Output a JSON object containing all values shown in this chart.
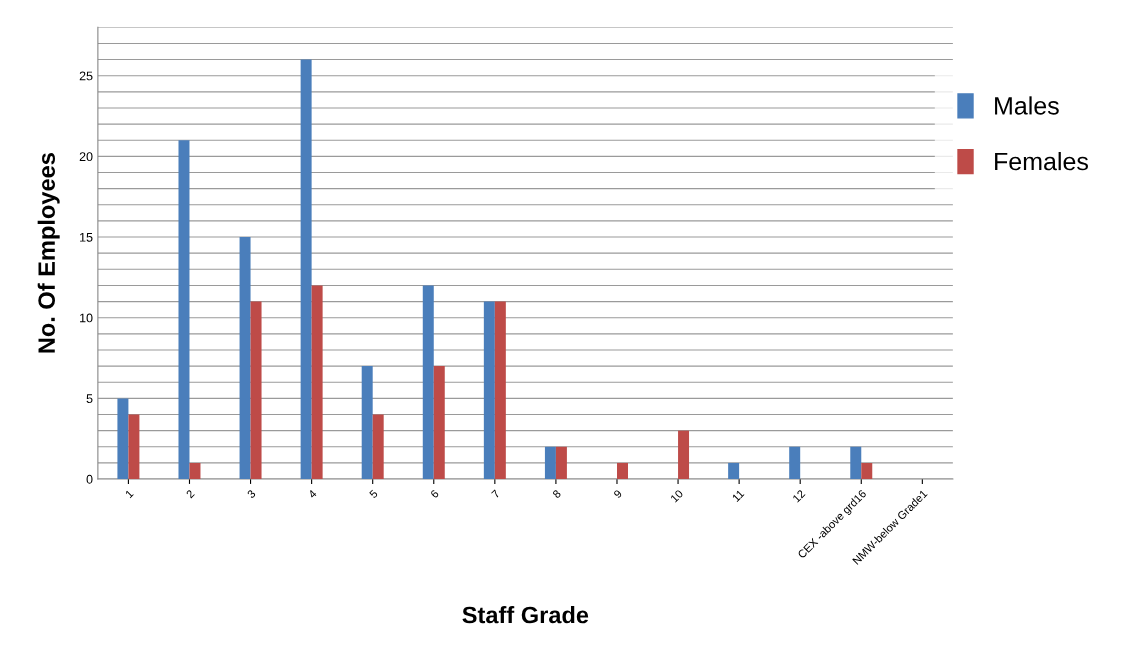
{
  "chart_data": {
    "type": "bar",
    "xlabel": "Staff Grade",
    "ylabel": "No. Of Employees",
    "categories": [
      "1",
      "2",
      "3",
      "4",
      "5",
      "6",
      "7",
      "8",
      "9",
      "10",
      "11",
      "12",
      "CEX -above grd16",
      "NMW-below Grade1"
    ],
    "series": [
      {
        "name": "Males",
        "color": "#4a7ebb",
        "values": [
          5,
          21,
          15,
          26,
          7,
          12,
          11,
          2,
          0,
          0,
          1,
          2,
          2,
          0
        ]
      },
      {
        "name": "Females",
        "color": "#be4b48",
        "values": [
          4,
          1,
          11,
          12,
          4,
          7,
          11,
          2,
          1,
          3,
          0,
          0,
          1,
          0
        ]
      }
    ],
    "ylim": [
      0,
      28
    ],
    "yticks": [
      0,
      {
        "value": 1,
        "label": null
      },
      {
        "value": 2,
        "label": null
      },
      {
        "value": 3,
        "label": null
      },
      {
        "value": 4,
        "label": null
      },
      5,
      {
        "value": 6,
        "label": null
      },
      {
        "value": 7,
        "label": null
      },
      {
        "value": 8,
        "label": null
      },
      {
        "value": 9,
        "label": null
      },
      10,
      {
        "value": 11,
        "label": null
      },
      {
        "value": 12,
        "label": null
      },
      {
        "value": 13,
        "label": null
      },
      {
        "value": 14,
        "label": null
      },
      15,
      {
        "value": 16,
        "label": null
      },
      {
        "value": 17,
        "label": null
      },
      {
        "value": 18,
        "label": null
      },
      {
        "value": 19,
        "label": null
      },
      20,
      {
        "value": 21,
        "label": null
      },
      {
        "value": 22,
        "label": null
      },
      {
        "value": 23,
        "label": null
      },
      {
        "value": 24,
        "label": null
      },
      25,
      {
        "value": 26,
        "label": null
      },
      {
        "value": 27,
        "label": null
      },
      {
        "value": 28,
        "label": null
      }
    ],
    "grid": "y",
    "legend": "top right"
  }
}
